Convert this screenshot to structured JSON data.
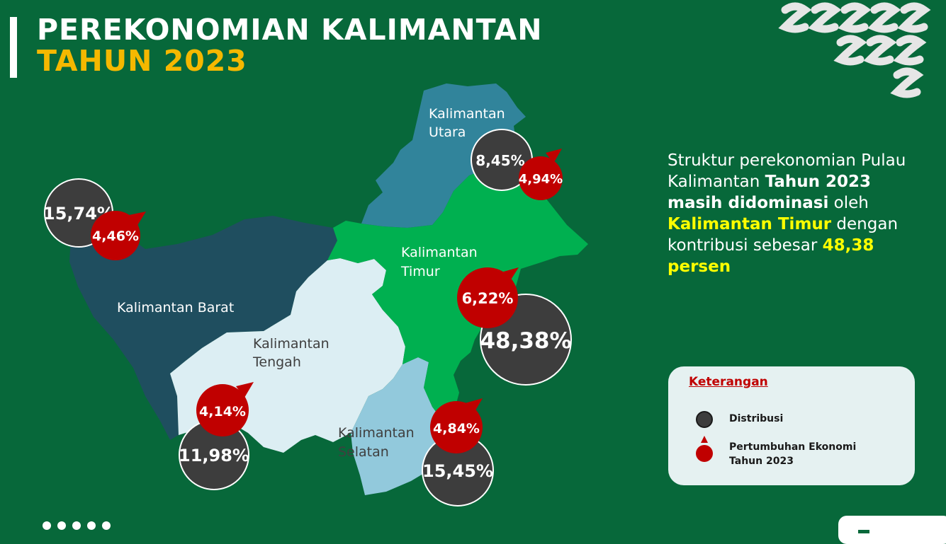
{
  "header": {
    "title_line1": "PEREKONOMIAN KALIMANTAN",
    "title_line2": "TAHUN 2023"
  },
  "regions": [
    {
      "name": "Kalimantan Barat",
      "distribusi": "15,74%",
      "pertumbuhan": "4,46%",
      "color": "#1f4e5f"
    },
    {
      "name_line1": "Kalimantan",
      "name_line2": "Tengah",
      "distribusi": "11,98%",
      "pertumbuhan": "4,14%",
      "color": "#dceef3"
    },
    {
      "name_line1": "Kalimantan",
      "name_line2": "Selatan",
      "distribusi": "15,45%",
      "pertumbuhan": "4,84%",
      "color": "#92c9dc"
    },
    {
      "name_line1": "Kalimantan",
      "name_line2": "Timur",
      "distribusi": "48,38%",
      "pertumbuhan": "6,22%",
      "color": "#00b050"
    },
    {
      "name_line1": "Kalimantan",
      "name_line2": "Utara",
      "distribusi": "8,45%",
      "pertumbuhan": "4,94%",
      "color": "#31849b"
    }
  ],
  "description": {
    "p1": "Struktur perekonomian Pulau Kalimantan ",
    "p2": "Tahun 2023 masih didominasi",
    "p3": " oleh ",
    "p4": "Kalimantan Timur",
    "p5": " dengan kontribusi sebesar ",
    "p6": "48,38 persen"
  },
  "legend": {
    "title": "Keterangan",
    "item1": "Distribusi",
    "item2_line1": "Pertumbuhan Ekonomi",
    "item2_line2": "Tahun 2023"
  },
  "colors": {
    "background": "#07683a",
    "accent": "#f5b800",
    "growth": "#c00000",
    "distribution": "#3d3d3d"
  }
}
